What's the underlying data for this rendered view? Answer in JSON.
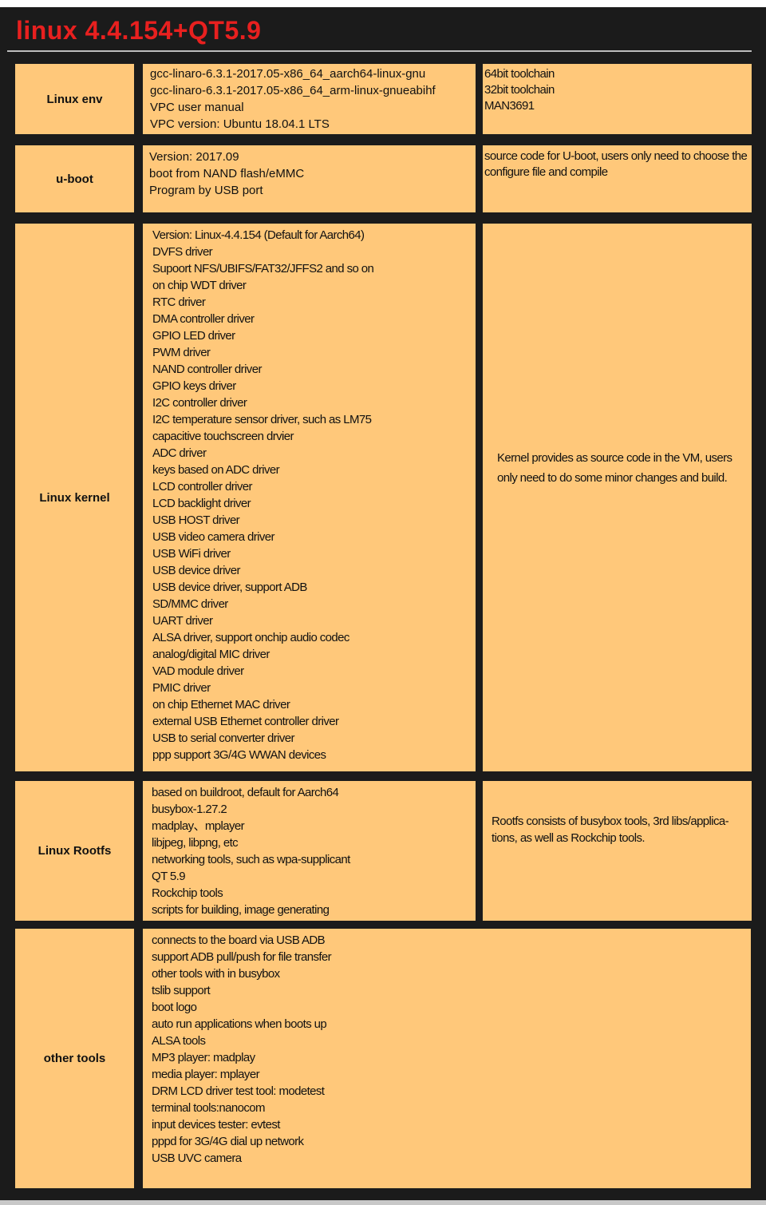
{
  "title": "linux 4.4.154+QT5.9",
  "colors": {
    "background": "#1b1b1b",
    "cell": "#ffc87a",
    "title": "#e8201f"
  },
  "rows": [
    {
      "label": "Linux env",
      "items": [
        "gcc-linaro-6.3.1-2017.05-x86_64_aarch64-linux-gnu",
        "gcc-linaro-6.3.1-2017.05-x86_64_arm-linux-gnueabihf",
        "VPC user manual",
        "VPC version: Ubuntu 18.04.1 LTS"
      ],
      "note_lines": [
        "64bit toolchain",
        "32bit toolchain",
        "MAN3691"
      ]
    },
    {
      "label": "u-boot",
      "items": [
        "Version: 2017.09",
        "boot from NAND flash/eMMC",
        "Program by USB port"
      ],
      "note": "source code for U-boot, users only need to choose the configure file and compile"
    },
    {
      "label": "Linux kernel",
      "items": [
        "Version: Linux-4.4.154 (Default for Aarch64)",
        "DVFS driver",
        "Supoort NFS/UBIFS/FAT32/JFFS2 and so on",
        "on chip WDT driver",
        "RTC driver",
        "DMA controller driver",
        "GPIO LED driver",
        "PWM driver",
        "NAND controller driver",
        "GPIO keys driver",
        "I2C controller driver",
        "I2C temperature sensor driver, such as LM75",
        "capacitive touchscreen drvier",
        "ADC driver",
        "keys based on ADC driver",
        "LCD controller driver",
        "LCD backlight driver",
        "USB HOST driver",
        "USB video camera driver",
        "USB WiFi driver",
        "USB device driver",
        "USB device driver, support ADB",
        "SD/MMC driver",
        "UART driver",
        "ALSA driver, support onchip audio codec",
        "analog/digital MIC driver",
        "VAD module driver",
        "PMIC driver",
        "on chip Ethernet MAC driver",
        "external USB Ethernet controller driver",
        "USB to serial converter driver",
        "ppp support 3G/4G WWAN devices"
      ],
      "note": "Kernel provides as source code in the VM, users only need to do some minor changes and build."
    },
    {
      "label": "Linux Rootfs",
      "items": [
        "based on buildroot, default for Aarch64",
        "busybox-1.27.2",
        "madplay、mplayer",
        "libjpeg, libpng, etc",
        "networking tools, such as wpa-supplicant",
        "QT 5.9",
        "Rockchip tools",
        "scripts for building, image generating"
      ],
      "note": "Rootfs consists of busybox tools, 3rd libs/applica-tions, as well as Rockchip tools."
    },
    {
      "label": "other tools",
      "items": [
        "connects to the board via USB ADB",
        "support ADB pull/push for file transfer",
        "other tools with in busybox",
        "tslib support",
        "boot logo",
        "auto run applications when boots up",
        "ALSA tools",
        "MP3 player: madplay",
        "media player: mplayer",
        "DRM LCD driver test tool: modetest",
        "terminal tools:nanocom",
        "input devices tester: evtest",
        "pppd for 3G/4G dial up network",
        "USB UVC camera"
      ]
    }
  ]
}
